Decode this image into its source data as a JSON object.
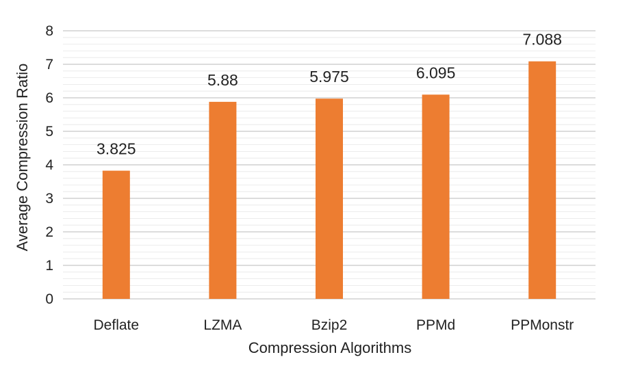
{
  "chart_data": {
    "type": "bar",
    "categories": [
      "Deflate",
      "LZMA",
      "Bzip2",
      "PPMd",
      "PPMonstr"
    ],
    "values": [
      3.825,
      5.88,
      5.975,
      6.095,
      7.088
    ],
    "data_labels": [
      "3.825",
      "5.88",
      "5.975",
      "6.095",
      "7.088"
    ],
    "title": "",
    "xlabel": "Compression Algorithms",
    "ylabel": "Average Compression Ratio",
    "ylim": [
      0,
      8
    ],
    "yticks": [
      0,
      1,
      2,
      3,
      4,
      5,
      6,
      7,
      8
    ],
    "grid": "horizontal",
    "legend": "none",
    "colors": {
      "bar": "#ED7D31",
      "grid": "#D0D0D0",
      "text": "#222222"
    }
  }
}
